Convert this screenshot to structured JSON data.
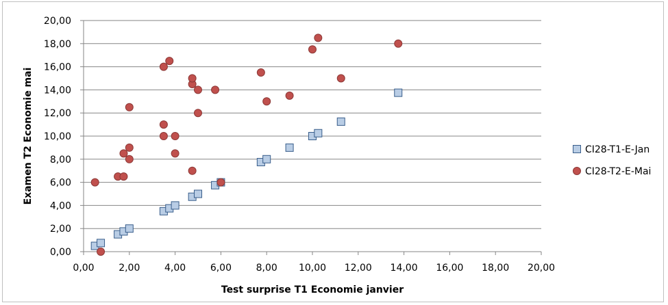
{
  "chart_data": {
    "type": "scatter",
    "title": "",
    "xlabel": "Test surprise T1 Economie janvier",
    "ylabel": "Examen T2 Economie mai",
    "xlim": [
      0,
      20
    ],
    "ylim": [
      0,
      20
    ],
    "x_ticks": [
      "0,00",
      "2,00",
      "4,00",
      "6,00",
      "8,00",
      "10,00",
      "12,00",
      "14,00",
      "16,00",
      "18,00",
      "20,00"
    ],
    "y_ticks": [
      "0,00",
      "2,00",
      "4,00",
      "6,00",
      "8,00",
      "10,00",
      "12,00",
      "14,00",
      "16,00",
      "18,00",
      "20,00"
    ],
    "grid": "horizontal",
    "legend_position": "right",
    "series": [
      {
        "name": "CI28-T1-E-Jan",
        "marker": "square",
        "color": "#b9cde5",
        "stroke": "#385d8a",
        "points": [
          [
            0.5,
            0.5
          ],
          [
            0.75,
            0.75
          ],
          [
            1.5,
            1.5
          ],
          [
            1.75,
            1.75
          ],
          [
            2,
            2
          ],
          [
            3.5,
            3.5
          ],
          [
            3.75,
            3.75
          ],
          [
            4,
            4
          ],
          [
            4.75,
            4.75
          ],
          [
            5,
            5
          ],
          [
            5.75,
            5.75
          ],
          [
            6,
            6
          ],
          [
            7.75,
            7.75
          ],
          [
            8,
            8
          ],
          [
            9,
            9
          ],
          [
            10,
            10
          ],
          [
            10.25,
            10.25
          ],
          [
            11.25,
            11.25
          ],
          [
            13.75,
            13.75
          ]
        ]
      },
      {
        "name": "CI28-T2-E-Mai",
        "marker": "circle",
        "color": "#c0504d",
        "stroke": "#8c3836",
        "points": [
          [
            0.5,
            6
          ],
          [
            0.75,
            0
          ],
          [
            1.5,
            6.5
          ],
          [
            1.75,
            6.5
          ],
          [
            1.75,
            8.5
          ],
          [
            2,
            8
          ],
          [
            2,
            9
          ],
          [
            2,
            12.5
          ],
          [
            3.5,
            10
          ],
          [
            3.5,
            11
          ],
          [
            3.5,
            16
          ],
          [
            3.75,
            16.5
          ],
          [
            4,
            8.5
          ],
          [
            4,
            10
          ],
          [
            4.75,
            7
          ],
          [
            4.75,
            14.5
          ],
          [
            4.75,
            15
          ],
          [
            5,
            12
          ],
          [
            5,
            14
          ],
          [
            5.75,
            14
          ],
          [
            6,
            6
          ],
          [
            7.75,
            15.5
          ],
          [
            8,
            13
          ],
          [
            9,
            13.5
          ],
          [
            10,
            17.5
          ],
          [
            10.25,
            18.5
          ],
          [
            11.25,
            15
          ],
          [
            13.75,
            18
          ]
        ]
      }
    ]
  }
}
